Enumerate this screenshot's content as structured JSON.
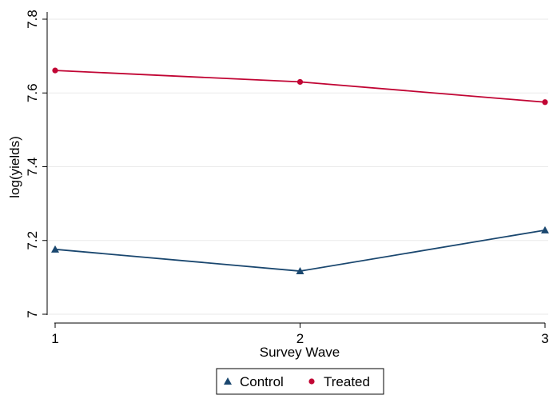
{
  "chart_data": {
    "type": "line",
    "title": "",
    "xlabel": "Survey Wave",
    "ylabel": "log(yields)",
    "x": [
      1,
      2,
      3
    ],
    "xticks": [
      "1",
      "2",
      "3"
    ],
    "xlim": [
      1,
      3
    ],
    "yticks": [
      "7",
      "7.2",
      "7.4",
      "7.6",
      "7.8"
    ],
    "ytick_values": [
      7,
      7.2,
      7.4,
      7.6,
      7.8
    ],
    "ylim": [
      7,
      7.8
    ],
    "grid": true,
    "legend_position": "bottom",
    "series": [
      {
        "name": "Control",
        "values": [
          7.176,
          7.117,
          7.228
        ],
        "color": "#1a476f",
        "marker": "triangle"
      },
      {
        "name": "Treated",
        "values": [
          7.661,
          7.63,
          7.575
        ],
        "color": "#c10534",
        "marker": "circle"
      }
    ]
  }
}
